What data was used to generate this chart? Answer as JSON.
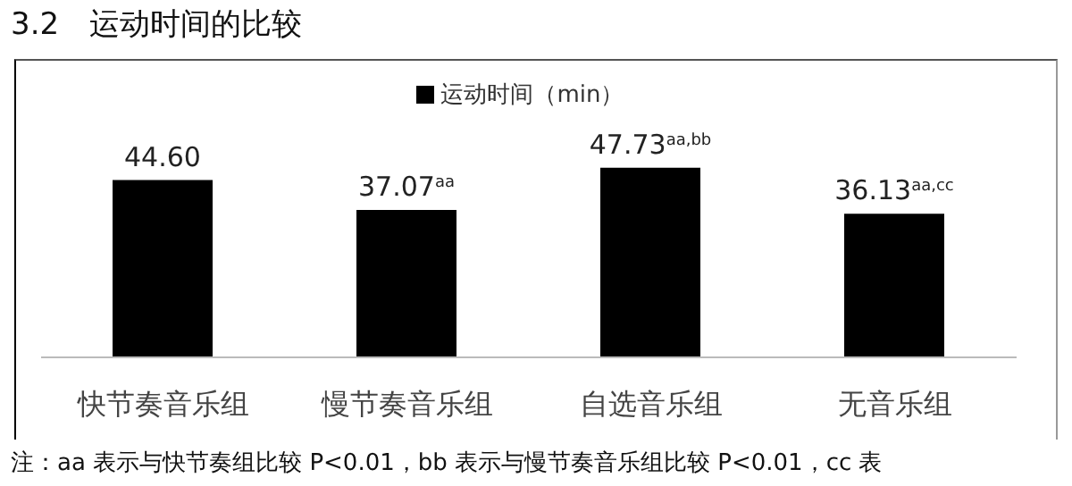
{
  "chart_data": {
    "type": "bar",
    "title": "3.2　运动时间的比较",
    "categories": [
      "快节奏音乐组",
      "慢节奏音乐组",
      "自选音乐组",
      "无音乐组"
    ],
    "series": [
      {
        "name": "运动时间（min）",
        "color": "#000000",
        "values": [
          44.6,
          37.07,
          47.73,
          36.13
        ],
        "value_labels": [
          "44.60",
          "37.07$^{aa}$",
          "47.73$^{aa,bb}$",
          "36.13$^{aa,cc}$"
        ]
      }
    ],
    "legend": "top",
    "grid": false,
    "annotations": [
      "注：aa 表示与快节奏组比较 P<0.01，bb 表示与慢节奏音乐组比较 P<0.01，cc 表"
    ]
  }
}
